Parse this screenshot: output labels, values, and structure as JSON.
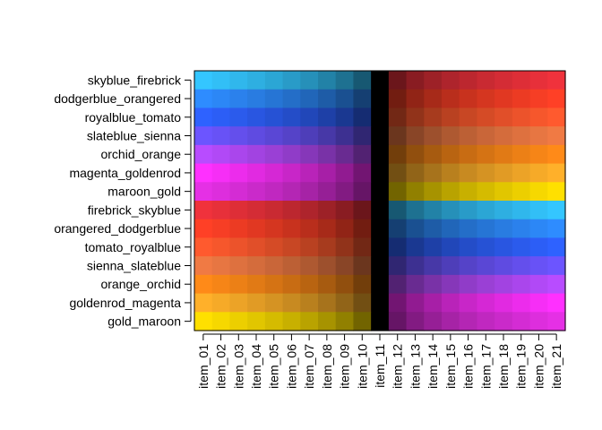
{
  "chart_data": {
    "type": "heatmap",
    "title": "",
    "xlabel": "",
    "ylabel": "",
    "legend": "none",
    "grid": false,
    "columns": [
      "item_01",
      "item_02",
      "item_03",
      "item_04",
      "item_05",
      "item_06",
      "item_07",
      "item_08",
      "item_09",
      "item_10",
      "item_11",
      "item_12",
      "item_13",
      "item_14",
      "item_15",
      "item_16",
      "item_17",
      "item_18",
      "item_19",
      "item_20",
      "item_21"
    ],
    "rows": [
      {
        "name": "skyblue_firebrick",
        "left": "#34C6FF",
        "right": "#F0323C"
      },
      {
        "name": "dodgerblue_orangered",
        "left": "#2E8CFF",
        "right": "#FF4026"
      },
      {
        "name": "royalblue_tomato",
        "left": "#2E62FF",
        "right": "#FF5A2E"
      },
      {
        "name": "slateblue_sienna",
        "left": "#6C55FF",
        "right": "#F07A44"
      },
      {
        "name": "orchid_orange",
        "left": "#B84CFF",
        "right": "#FF8A18"
      },
      {
        "name": "magenta_goldenrod",
        "left": "#FF30FF",
        "right": "#FFB02A"
      },
      {
        "name": "maroon_gold",
        "left": "#E530E5",
        "right": "#FFE000"
      },
      {
        "name": "firebrick_skyblue",
        "left": "#F0323C",
        "right": "#34C6FF"
      },
      {
        "name": "orangered_dodgerblue",
        "left": "#FF4026",
        "right": "#2E8CFF"
      },
      {
        "name": "tomato_royalblue",
        "left": "#FF5A2E",
        "right": "#2E62FF"
      },
      {
        "name": "sienna_slateblue",
        "left": "#F07A44",
        "right": "#6C55FF"
      },
      {
        "name": "orange_orchid",
        "left": "#FF8A18",
        "right": "#B84CFF"
      },
      {
        "name": "goldenrod_magenta",
        "left": "#FFB02A",
        "right": "#FF30FF"
      },
      {
        "name": "gold_maroon",
        "left": "#FFE000",
        "right": "#E530E5"
      }
    ],
    "center_color": "#000000"
  }
}
